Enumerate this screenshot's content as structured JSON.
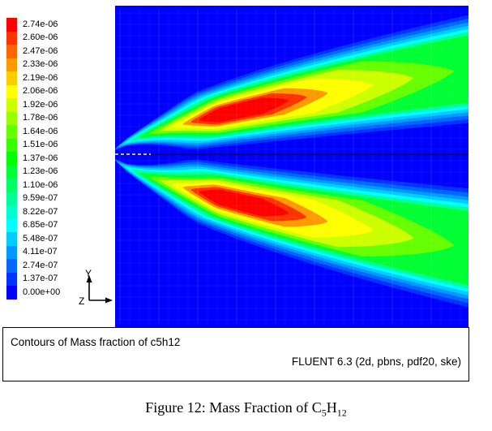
{
  "figure": {
    "legend": {
      "values": [
        "2.74e-06",
        "2.60e-06",
        "2.47e-06",
        "2.33e-06",
        "2.19e-06",
        "2.06e-06",
        "1.92e-06",
        "1.78e-06",
        "1.64e-06",
        "1.51e-06",
        "1.37e-06",
        "1.23e-06",
        "1.10e-06",
        "9.59e-07",
        "8.22e-07",
        "6.85e-07",
        "5.48e-07",
        "4.11e-07",
        "2.74e-07",
        "1.37e-07",
        "0.00e+00"
      ]
    },
    "plot": {
      "background": "#0000FF",
      "axis_labels": {
        "vertical": "Y",
        "horizontal": "Z"
      }
    },
    "caption": {
      "title": "Contours of Mass fraction of c5h12",
      "solver": "FLUENT 6.3 (2d, pbns, pdf20, ske)"
    }
  },
  "figure_caption": {
    "prefix": "Figure 12: Mass Fraction of C",
    "sub_5": "5",
    "element_h": "H",
    "sub_12": "12"
  },
  "chart_data": {
    "type": "heatmap",
    "subtype": "filled-contour-cfd",
    "title": "Contours of Mass fraction of c5h12",
    "quantity": "Mass fraction of c5h12",
    "annotation": "FLUENT 6.3 (2d, pbns, pdf20, ske)",
    "value_range": [
      0.0,
      2.74e-06
    ],
    "legend_levels": [
      2.74e-06,
      2.6e-06,
      2.47e-06,
      2.33e-06,
      2.19e-06,
      2.06e-06,
      1.92e-06,
      1.78e-06,
      1.64e-06,
      1.51e-06,
      1.37e-06,
      1.23e-06,
      1.1e-06,
      9.59e-07,
      8.22e-07,
      6.85e-07,
      5.48e-07,
      4.11e-07,
      2.74e-07,
      1.37e-07,
      0.0
    ],
    "colormap": [
      "#FF0000",
      "#FF3300",
      "#FF6600",
      "#FF9900",
      "#FFCC00",
      "#FFFF00",
      "#CCFF00",
      "#99FF00",
      "#66FF00",
      "#33FF00",
      "#00FF00",
      "#00FF33",
      "#00FF66",
      "#00FF99",
      "#00FFCC",
      "#00FFFF",
      "#00CCFF",
      "#0099FF",
      "#0066FF",
      "#0033FF",
      "#0000FF"
    ],
    "legend_position": "left",
    "description": "Two symmetric jet plumes of c5h12 mass fraction about a horizontal centerline; peak (red) core upstream near the inlet, decaying downstream to the right; background field at 0 (blue)."
  }
}
